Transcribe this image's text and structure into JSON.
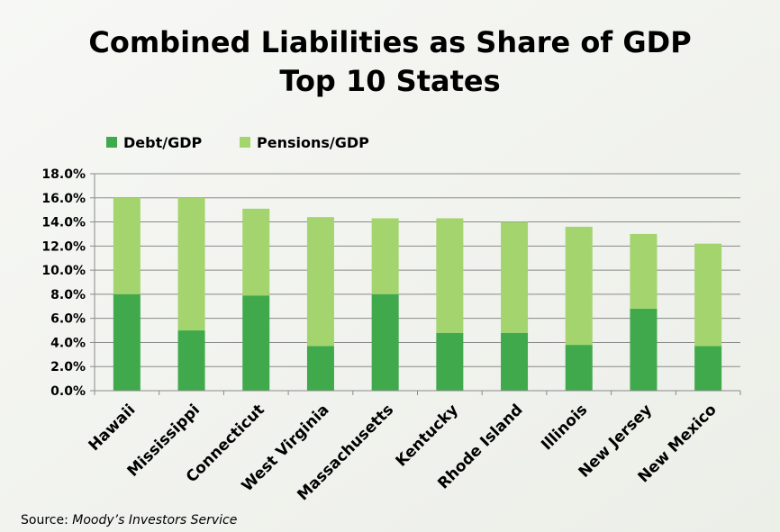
{
  "chart_data": {
    "type": "bar",
    "stacked": true,
    "title": "Combined Liabilities as Share of GDP",
    "subtitle": "Top 10 States",
    "ylim": [
      0,
      18
    ],
    "yticks": [
      "0.0%",
      "2.0%",
      "4.0%",
      "6.0%",
      "8.0%",
      "10.0%",
      "12.0%",
      "14.0%",
      "16.0%",
      "18.0%"
    ],
    "grid": true,
    "legend_position": "top-left",
    "categories": [
      "Hawaii",
      "Mississippi",
      "Connecticut",
      "West Virginia",
      "Massachusetts",
      "Kentucky",
      "Rhode Island",
      "Illinois",
      "New Jersey",
      "New Mexico"
    ],
    "series": [
      {
        "name": "Debt/GDP",
        "color": "#3fa94b",
        "values": [
          8.0,
          5.0,
          7.9,
          3.7,
          8.0,
          4.8,
          4.8,
          3.8,
          6.8,
          3.7
        ]
      },
      {
        "name": "Pensions/GDP",
        "color": "#a3d46d",
        "values": [
          8.0,
          11.0,
          7.2,
          10.7,
          6.3,
          9.5,
          9.2,
          9.8,
          6.2,
          8.5
        ]
      }
    ]
  },
  "source": {
    "label": "Source: ",
    "name": "Moody’s Investors Service"
  }
}
